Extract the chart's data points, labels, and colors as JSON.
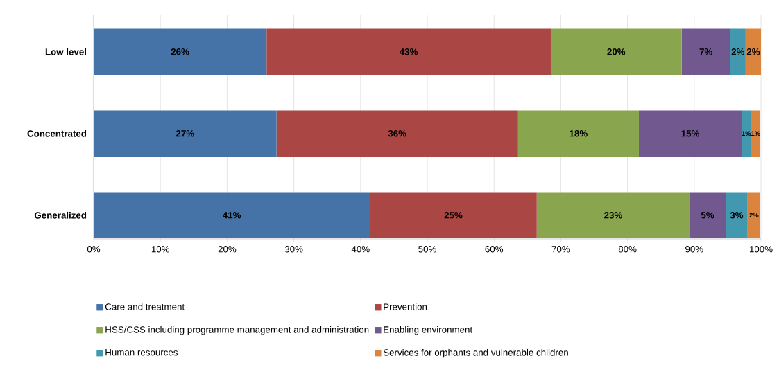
{
  "chart_data": {
    "type": "bar",
    "orientation": "horizontal",
    "stacked": true,
    "categories": [
      "Low level",
      "Concentrated",
      "Generalized"
    ],
    "series": [
      {
        "name": "Care and treatment",
        "color": "#4572a7",
        "values": [
          25.9,
          27.4,
          41.4
        ],
        "value_labels": [
          "26%",
          "27%",
          "41%"
        ]
      },
      {
        "name": "Prevention",
        "color": "#aa4643",
        "values": [
          42.6,
          36.2,
          25.0
        ],
        "value_labels": [
          "43%",
          "36%",
          "25%"
        ]
      },
      {
        "name": "HSS/CSS including programme management and administration",
        "color": "#89a54e",
        "values": [
          19.6,
          18.1,
          22.9
        ],
        "value_labels": [
          "20%",
          "18%",
          "23%"
        ]
      },
      {
        "name": "Enabling environment",
        "color": "#71588f",
        "values": [
          7.3,
          15.4,
          5.4
        ],
        "value_labels": [
          "7%",
          "15%",
          "5%"
        ]
      },
      {
        "name": "Human resources",
        "color": "#4198af",
        "values": [
          2.3,
          1.4,
          3.3
        ],
        "value_labels": [
          "2%",
          "1%",
          "3%"
        ]
      },
      {
        "name": "Services for orphants and vulnerable children",
        "color": "#db843d",
        "values": [
          2.3,
          1.4,
          1.9
        ],
        "value_labels": [
          "2%",
          "1%",
          "2%"
        ]
      }
    ],
    "xlim": [
      0,
      100
    ],
    "xticks": [
      {
        "value": 0,
        "label": "0%"
      },
      {
        "value": 10,
        "label": "10%"
      },
      {
        "value": 20,
        "label": "20%"
      },
      {
        "value": 30,
        "label": "30%"
      },
      {
        "value": 40,
        "label": "40%"
      },
      {
        "value": 50,
        "label": "50%"
      },
      {
        "value": 60,
        "label": "60%"
      },
      {
        "value": 70,
        "label": "70%"
      },
      {
        "value": 80,
        "label": "80%"
      },
      {
        "value": 90,
        "label": "90%"
      },
      {
        "value": 100,
        "label": "100%"
      }
    ],
    "grid": "x",
    "legend": "bottom"
  }
}
